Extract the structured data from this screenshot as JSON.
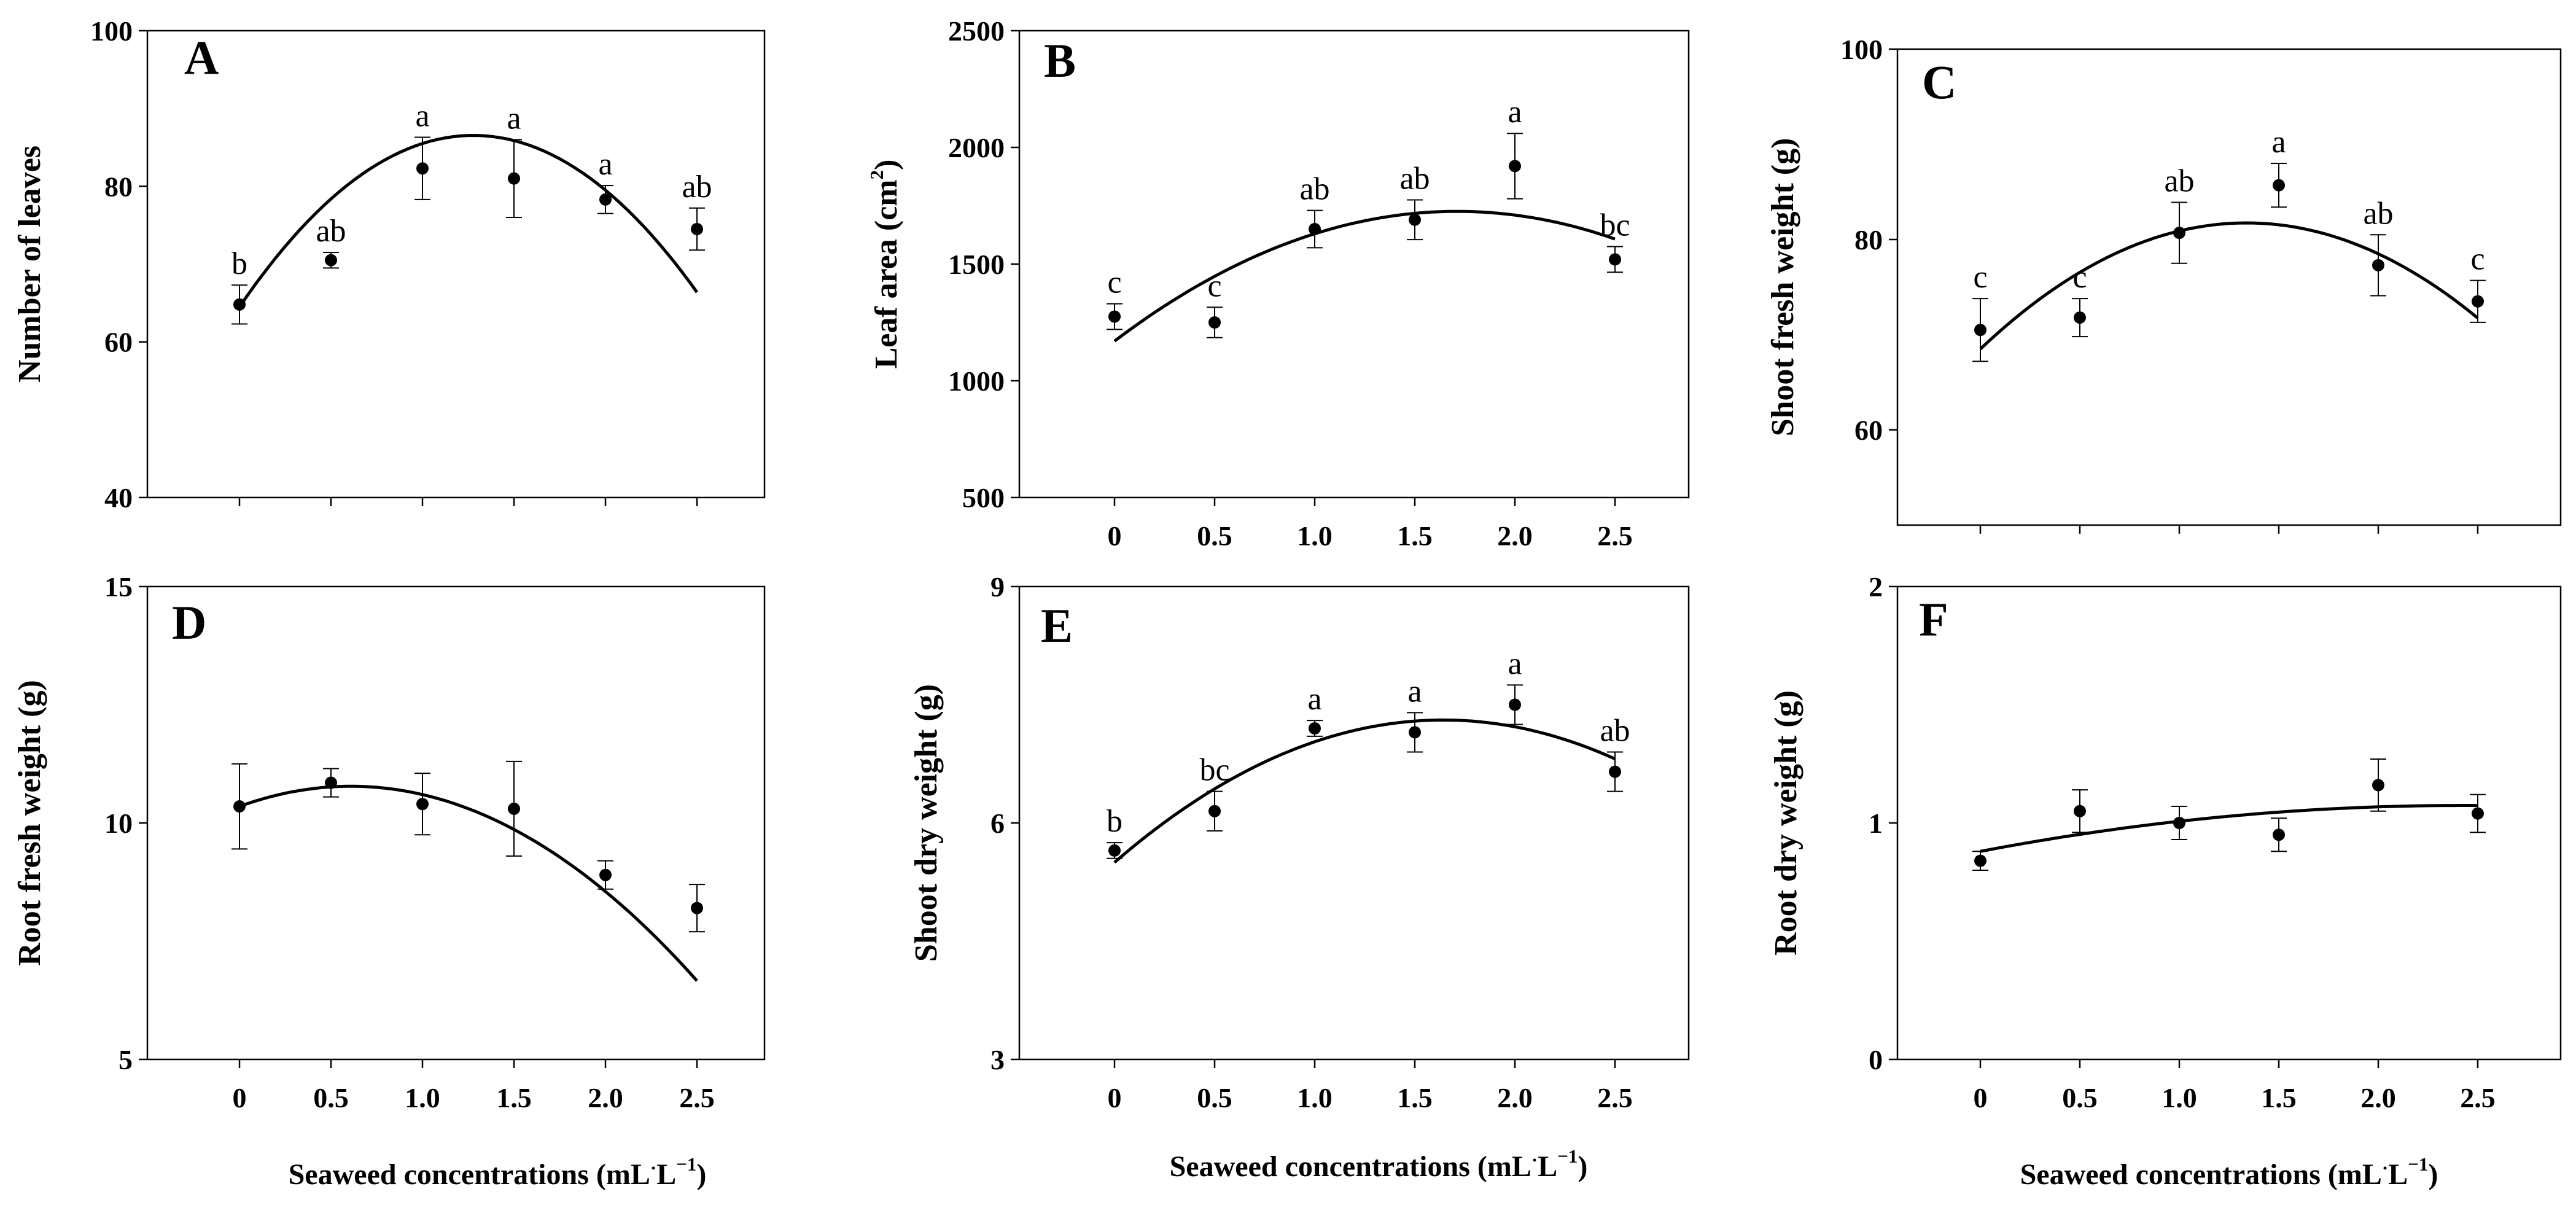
{
  "figure": {
    "xlabel": {
      "main": "Seaweed concentrations (mL",
      "dot": "·",
      "unit": "L",
      "sup": "−1",
      "close": ")"
    }
  },
  "chart_data": [
    {
      "type": "scatter",
      "panel": "A",
      "ylabel": "Number of leaves",
      "ylim": [
        40,
        100
      ],
      "yticks": [
        40,
        60,
        80,
        100
      ],
      "x": [
        0,
        0.5,
        1.0,
        1.5,
        2.0,
        2.5
      ],
      "x_tick_labels": [
        "0",
        "0.5",
        "1.0",
        "1.5",
        "2.0",
        "2.5"
      ],
      "values": [
        64.8,
        70.5,
        82.3,
        81.0,
        78.3,
        74.5
      ],
      "errors": [
        2.5,
        1.0,
        4.0,
        5.0,
        1.8,
        2.7
      ],
      "letters": [
        "b",
        "ab",
        "a",
        "a",
        "a",
        "ab"
      ],
      "fit": [
        64.5,
        34.5,
        -13.5
      ],
      "show_x_tick_labels": false,
      "show_xlabel": false
    },
    {
      "type": "scatter",
      "panel": "B",
      "ylabel": "Leaf area (cm",
      "ylabel_sup": "2",
      "ylabel_close": ")",
      "ylim": [
        500,
        2500
      ],
      "yticks": [
        500,
        1000,
        1500,
        2000,
        2500
      ],
      "x": [
        0,
        0.5,
        1.0,
        1.5,
        2.0,
        2.5
      ],
      "x_tick_labels": [
        "0",
        "0.5",
        "1.0",
        "1.5",
        "2.0",
        "2.5"
      ],
      "values": [
        1275,
        1250,
        1650,
        1690,
        1920,
        1520
      ],
      "errors": [
        55,
        65,
        80,
        85,
        140,
        55
      ],
      "letters": [
        "c",
        "c",
        "ab",
        "ab",
        "a",
        "bc"
      ],
      "fit": [
        1170,
        650,
        -190
      ],
      "show_x_tick_labels": true,
      "show_xlabel": false
    },
    {
      "type": "scatter",
      "panel": "C",
      "ylabel": "Shoot fresh weight (g)",
      "ylim": [
        50,
        100
      ],
      "yticks": [
        60,
        80,
        100
      ],
      "x": [
        0,
        0.5,
        1.0,
        1.5,
        2.0,
        2.5
      ],
      "x_tick_labels": [
        "0",
        "0.5",
        "1.0",
        "1.5",
        "2.0",
        "2.5"
      ],
      "values": [
        70.5,
        71.8,
        80.7,
        85.7,
        77.3,
        73.5
      ],
      "errors": [
        3.3,
        2.0,
        3.2,
        2.3,
        3.2,
        2.2
      ],
      "letters": [
        "c",
        "c",
        "ab",
        "a",
        "ab",
        "c"
      ],
      "fit": [
        68.5,
        19.8,
        -7.4
      ],
      "show_x_tick_labels": false,
      "show_xlabel": false
    },
    {
      "type": "scatter",
      "panel": "D",
      "ylabel": "Root fresh weight (g)",
      "ylim": [
        5,
        15
      ],
      "yticks": [
        5,
        10,
        15
      ],
      "x": [
        0,
        0.5,
        1.0,
        1.5,
        2.0,
        2.5
      ],
      "x_tick_labels": [
        "0",
        "0.5",
        "1.0",
        "1.5",
        "2.0",
        "2.5"
      ],
      "values": [
        10.35,
        10.85,
        10.4,
        10.3,
        8.9,
        8.2
      ],
      "errors": [
        0.9,
        0.3,
        0.65,
        1.0,
        0.3,
        0.5
      ],
      "letters": [
        "",
        "",
        "",
        "",
        "",
        ""
      ],
      "fit": [
        10.35,
        1.4,
        -1.15
      ],
      "show_x_tick_labels": true,
      "show_xlabel": true
    },
    {
      "type": "scatter",
      "panel": "E",
      "ylabel": "Shoot dry weight (g)",
      "ylim": [
        3,
        9
      ],
      "yticks": [
        3,
        6,
        9
      ],
      "x": [
        0,
        0.5,
        1.0,
        1.5,
        2.0,
        2.5
      ],
      "x_tick_labels": [
        "0",
        "0.5",
        "1.0",
        "1.5",
        "2.0",
        "2.5"
      ],
      "values": [
        5.65,
        6.15,
        7.2,
        7.15,
        7.5,
        6.65
      ],
      "errors": [
        0.1,
        0.25,
        0.1,
        0.25,
        0.25,
        0.25
      ],
      "letters": [
        "b",
        "bc",
        "a",
        "a",
        "a",
        "ab"
      ],
      "fit": [
        5.5,
        2.2,
        -0.67
      ],
      "show_x_tick_labels": true,
      "show_xlabel": true
    },
    {
      "type": "scatter",
      "panel": "F",
      "ylabel": "Root dry weight (g)",
      "ylim": [
        0,
        2
      ],
      "yticks": [
        0,
        1,
        2
      ],
      "x": [
        0,
        0.5,
        1.0,
        1.5,
        2.0,
        2.5
      ],
      "x_tick_labels": [
        "0",
        "0.5",
        "1.0",
        "1.5",
        "2.0",
        "2.5"
      ],
      "values": [
        0.84,
        1.05,
        1.0,
        0.95,
        1.16,
        1.04
      ],
      "errors": [
        0.04,
        0.09,
        0.07,
        0.07,
        0.11,
        0.08
      ],
      "letters": [
        "",
        "",
        "",
        "",
        "",
        ""
      ],
      "fit": [
        0.88,
        0.16,
        -0.033
      ],
      "show_x_tick_labels": true,
      "show_xlabel": true
    }
  ]
}
